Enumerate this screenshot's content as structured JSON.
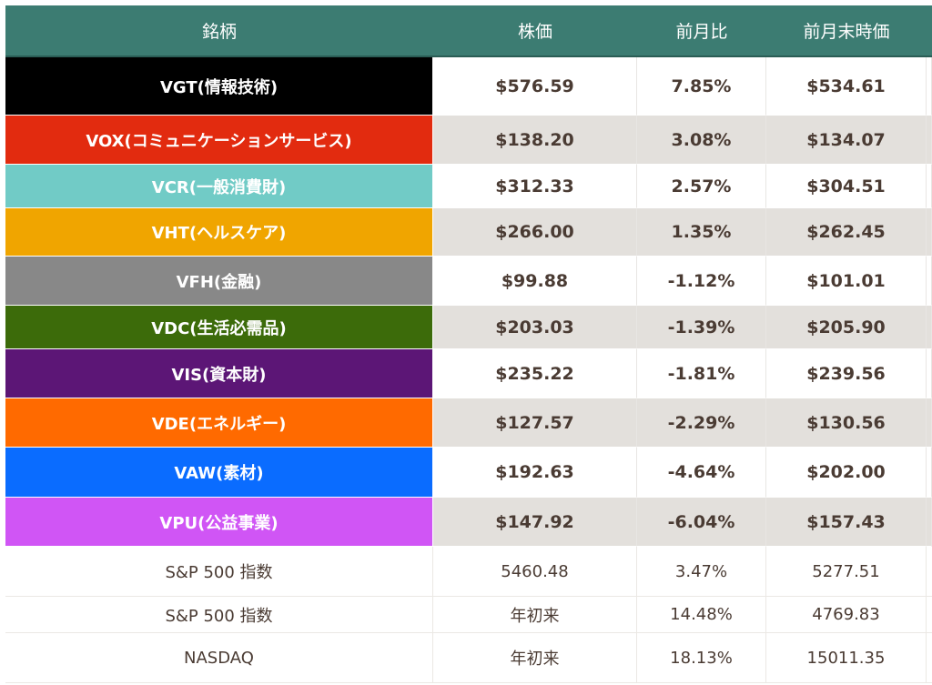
{
  "table": {
    "headers": [
      "銘柄",
      "株価",
      "前月比",
      "前月末時価"
    ],
    "sector_rows": [
      {
        "name": "VGT(情報技術)",
        "price": "$576.59",
        "change": "7.85%",
        "prev": "$534.61",
        "color": "#000000"
      },
      {
        "name": "VOX(コミュニケーションサービス)",
        "price": "$138.20",
        "change": "3.08%",
        "prev": "$134.07",
        "color": "#e22b0f"
      },
      {
        "name": "VCR(一般消費財)",
        "price": "$312.33",
        "change": "2.57%",
        "prev": "$304.51",
        "color": "#71cbc6"
      },
      {
        "name": "VHT(ヘルスケア)",
        "price": "$266.00",
        "change": "1.35%",
        "prev": "$262.45",
        "color": "#f0a500"
      },
      {
        "name": "VFH(金融)",
        "price": "$99.88",
        "change": "-1.12%",
        "prev": "$101.01",
        "color": "#888888"
      },
      {
        "name": "VDC(生活必需品)",
        "price": "$203.03",
        "change": "-1.39%",
        "prev": "$205.90",
        "color": "#3c6b0a"
      },
      {
        "name": "VIS(資本財)",
        "price": "$235.22",
        "change": "-1.81%",
        "prev": "$239.56",
        "color": "#5c1676"
      },
      {
        "name": "VDE(エネルギー)",
        "price": "$127.57",
        "change": "-2.29%",
        "prev": "$130.56",
        "color": "#ff6a00"
      },
      {
        "name": "VAW(素材)",
        "price": "$192.63",
        "change": "-4.64%",
        "prev": "$202.00",
        "color": "#0a6cff"
      },
      {
        "name": "VPU(公益事業)",
        "price": "$147.92",
        "change": "-6.04%",
        "prev": "$157.43",
        "color": "#d055f5"
      }
    ],
    "index_rows": [
      {
        "name": "S&P 500 指数",
        "price": "5460.48",
        "change": "3.47%",
        "prev": "5277.51"
      },
      {
        "name": "S&P 500 指数",
        "price": "年初来",
        "change": "14.48%",
        "prev": "4769.83"
      },
      {
        "name": "NASDAQ",
        "price": "年初来",
        "change": "18.13%",
        "prev": "15011.35"
      }
    ]
  }
}
